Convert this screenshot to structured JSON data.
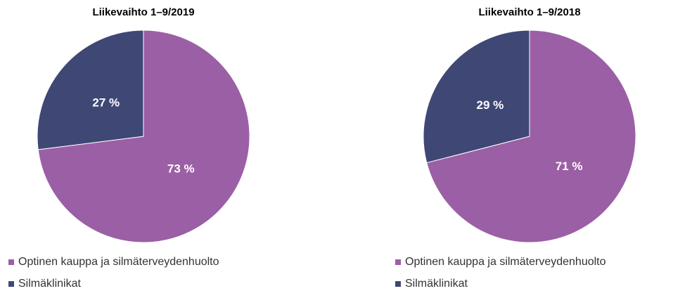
{
  "chart_data": [
    {
      "type": "pie",
      "title": "Liikevaihto 1–9/2019",
      "categories": [
        "Optinen kauppa ja silmäterveydenhuolto",
        "Silmäklinikat"
      ],
      "values": [
        73,
        27
      ],
      "value_labels": [
        "73 %",
        "27 %"
      ],
      "colors": [
        "#9b5fa5",
        "#3f4775"
      ]
    },
    {
      "type": "pie",
      "title": "Liikevaihto 1–9/2018",
      "categories": [
        "Optinen kauppa ja silmäterveydenhuolto",
        "Silmäklinikat"
      ],
      "values": [
        71,
        29
      ],
      "value_labels": [
        "71 %",
        "29 %"
      ],
      "colors": [
        "#9b5fa5",
        "#3f4775"
      ]
    }
  ]
}
